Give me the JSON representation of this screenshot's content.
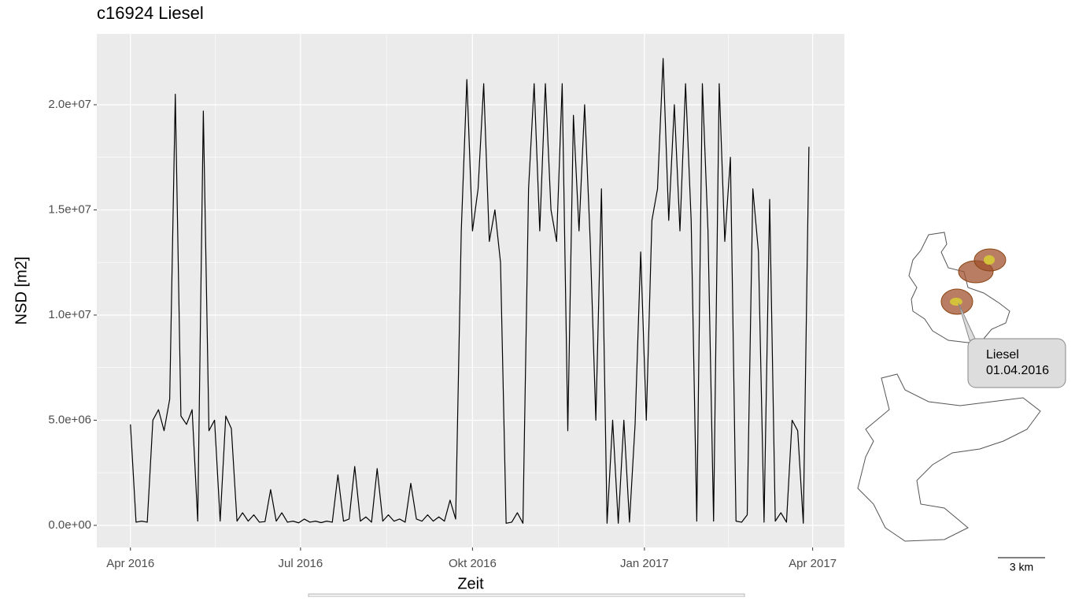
{
  "chart_data": {
    "type": "line",
    "title": "c16924 Liesel",
    "x_label": "Zeit",
    "y_label": "NSD [m2]",
    "color": "#000000",
    "grid": true,
    "xlim": [
      "2016-03-14",
      "2017-04-18"
    ],
    "xticks": [
      {
        "value": "2016-04-01",
        "label": "Apr 2016"
      },
      {
        "value": "2016-07-01",
        "label": "Jul 2016"
      },
      {
        "value": "2016-10-01",
        "label": "Okt 2016"
      },
      {
        "value": "2017-01-01",
        "label": "Jan 2017"
      },
      {
        "value": "2017-04-01",
        "label": "Apr 2017"
      }
    ],
    "ylim": [
      -1050000,
      23370000
    ],
    "yticks": [
      {
        "value": 0,
        "label": "0.0e+00"
      },
      {
        "value": 5000000,
        "label": "5.0e+06"
      },
      {
        "value": 10000000,
        "label": "1.0e+07"
      },
      {
        "value": 15000000,
        "label": "1.5e+07"
      },
      {
        "value": 20000000,
        "label": "2.0e+07"
      }
    ],
    "x": [
      "2016-04-01",
      "2016-04-04",
      "2016-04-07",
      "2016-04-10",
      "2016-04-13",
      "2016-04-16",
      "2016-04-19",
      "2016-04-22",
      "2016-04-25",
      "2016-04-28",
      "2016-05-01",
      "2016-05-04",
      "2016-05-07",
      "2016-05-10",
      "2016-05-13",
      "2016-05-16",
      "2016-05-19",
      "2016-05-22",
      "2016-05-25",
      "2016-05-28",
      "2016-05-31",
      "2016-06-03",
      "2016-06-06",
      "2016-06-09",
      "2016-06-12",
      "2016-06-15",
      "2016-06-18",
      "2016-06-21",
      "2016-06-24",
      "2016-06-27",
      "2016-06-30",
      "2016-07-03",
      "2016-07-06",
      "2016-07-09",
      "2016-07-12",
      "2016-07-15",
      "2016-07-18",
      "2016-07-21",
      "2016-07-24",
      "2016-07-27",
      "2016-07-30",
      "2016-08-02",
      "2016-08-05",
      "2016-08-08",
      "2016-08-11",
      "2016-08-14",
      "2016-08-17",
      "2016-08-20",
      "2016-08-23",
      "2016-08-26",
      "2016-08-29",
      "2016-09-01",
      "2016-09-04",
      "2016-09-07",
      "2016-09-10",
      "2016-09-13",
      "2016-09-16",
      "2016-09-19",
      "2016-09-22",
      "2016-09-25",
      "2016-09-28",
      "2016-10-01",
      "2016-10-04",
      "2016-10-07",
      "2016-10-10",
      "2016-10-13",
      "2016-10-16",
      "2016-10-19",
      "2016-10-22",
      "2016-10-25",
      "2016-10-28",
      "2016-10-31",
      "2016-11-03",
      "2016-11-06",
      "2016-11-09",
      "2016-11-12",
      "2016-11-15",
      "2016-11-18",
      "2016-11-21",
      "2016-11-24",
      "2016-11-27",
      "2016-11-30",
      "2016-12-03",
      "2016-12-06",
      "2016-12-09",
      "2016-12-12",
      "2016-12-15",
      "2016-12-18",
      "2016-12-21",
      "2016-12-24",
      "2016-12-27",
      "2016-12-30",
      "2017-01-02",
      "2017-01-05",
      "2017-01-08",
      "2017-01-11",
      "2017-01-14",
      "2017-01-17",
      "2017-01-20",
      "2017-01-23",
      "2017-01-26",
      "2017-01-29",
      "2017-02-01",
      "2017-02-04",
      "2017-02-07",
      "2017-02-10",
      "2017-02-13",
      "2017-02-16",
      "2017-02-19",
      "2017-02-22",
      "2017-02-25",
      "2017-02-28",
      "2017-03-03",
      "2017-03-06",
      "2017-03-09",
      "2017-03-12",
      "2017-03-15",
      "2017-03-18",
      "2017-03-21",
      "2017-03-24",
      "2017-03-27",
      "2017-03-30"
    ],
    "values": [
      4800000.0,
      150000.0,
      200000.0,
      150000.0,
      5000000.0,
      5500000.0,
      4500000.0,
      6000000.0,
      20500000.0,
      5200000.0,
      4800000.0,
      5500000.0,
      200000.0,
      19700000.0,
      4500000.0,
      5000000.0,
      200000.0,
      5200000.0,
      4600000.0,
      200000.0,
      600000.0,
      200000.0,
      500000.0,
      150000.0,
      180000.0,
      1700000.0,
      200000.0,
      600000.0,
      150000.0,
      200000.0,
      120000.0,
      300000.0,
      150000.0,
      200000.0,
      130000.0,
      200000.0,
      150000.0,
      2400000.0,
      200000.0,
      300000.0,
      2800000.0,
      200000.0,
      400000.0,
      150000.0,
      2700000.0,
      200000.0,
      500000.0,
      200000.0,
      300000.0,
      150000.0,
      2000000.0,
      300000.0,
      200000.0,
      500000.0,
      200000.0,
      400000.0,
      200000.0,
      1200000.0,
      300000.0,
      14000000.0,
      21200000.0,
      14000000.0,
      16000000.0,
      21000000.0,
      13500000.0,
      15000000.0,
      12500000.0,
      100000.0,
      150000.0,
      600000.0,
      100000.0,
      16000000.0,
      21000000.0,
      14000000.0,
      21000000.0,
      15000000.0,
      13500000.0,
      21000000.0,
      4500000.0,
      19500000.0,
      14000000.0,
      20000000.0,
      13500000.0,
      5000000.0,
      16000000.0,
      100000.0,
      5000000.0,
      100000.0,
      5000000.0,
      150000.0,
      4800000.0,
      13000000.0,
      5000000.0,
      14500000.0,
      16000000.0,
      22200000.0,
      14500000.0,
      20000000.0,
      14000000.0,
      21000000.0,
      14500000.0,
      200000.0,
      21000000.0,
      14000000.0,
      200000.0,
      21000000.0,
      13500000.0,
      17500000.0,
      200000.0,
      150000.0,
      500000.0,
      16000000.0,
      13000000.0,
      150000.0,
      15500000.0,
      200000.0,
      600000.0,
      150000.0,
      5000000.0,
      4500000.0,
      100000.0,
      18000000.0
    ]
  },
  "map": {
    "tooltip_name": "Liesel",
    "tooltip_date": "01.04.2016",
    "scale_label": "3 km"
  }
}
